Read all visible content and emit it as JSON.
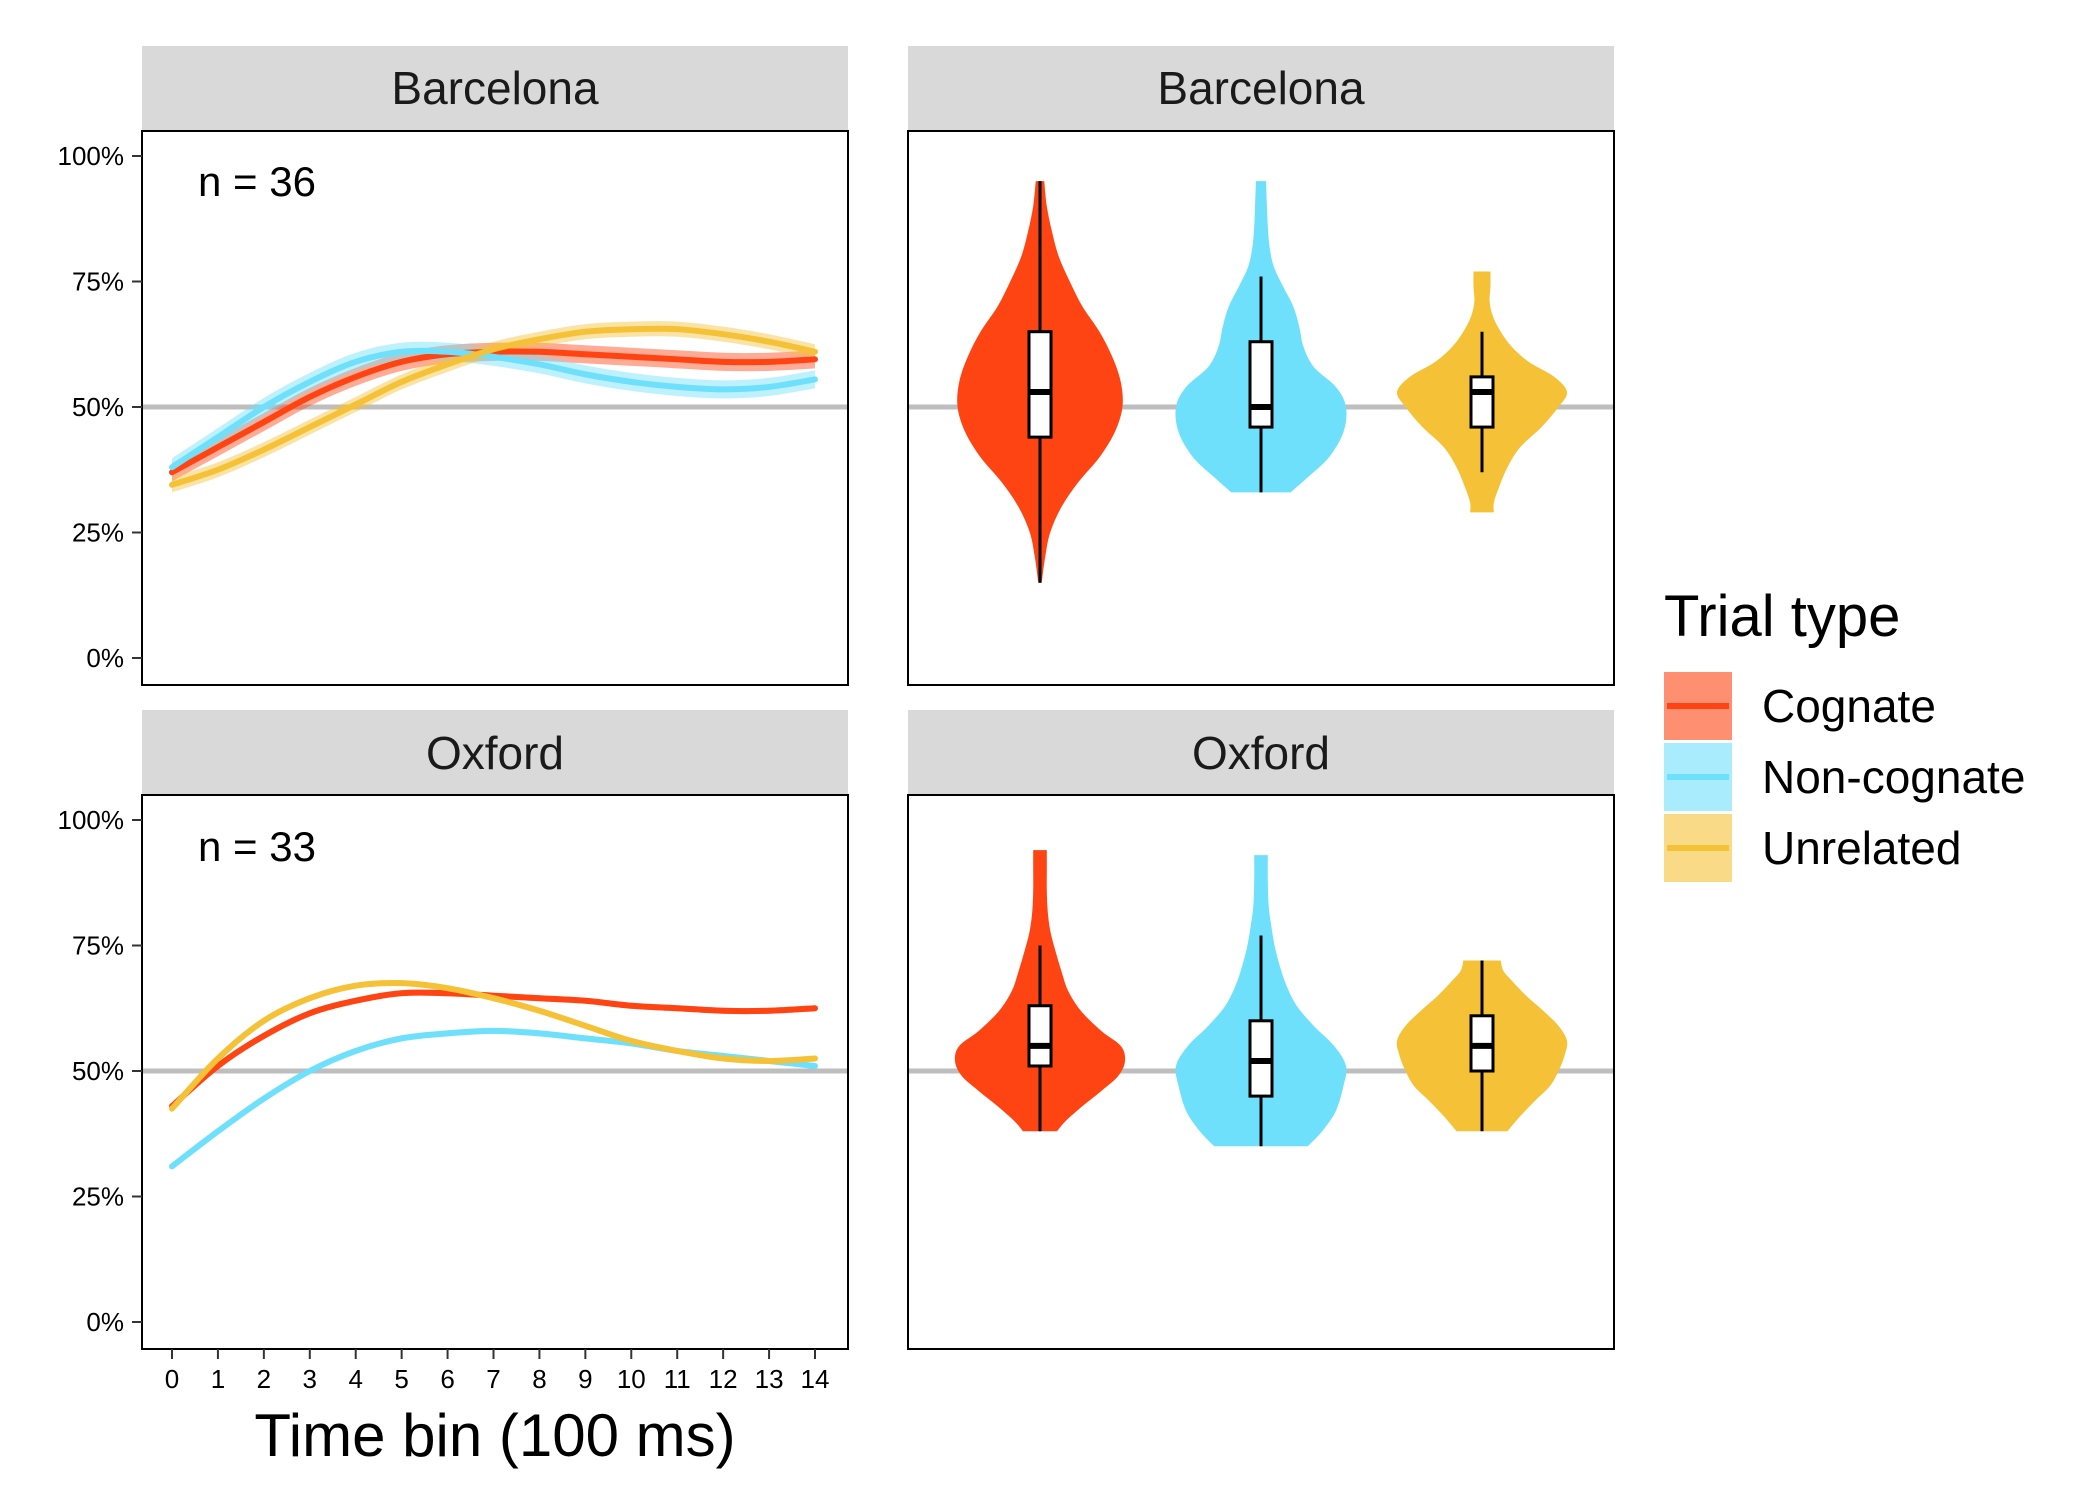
{
  "colors": {
    "Cognate": "#FF4413",
    "Non-cognate": "#6FE0FC",
    "Unrelated": "#F5C237",
    "strip": "#D9D9D9",
    "reference_line": "#BEBEBE"
  },
  "legend": {
    "title": "Trial type",
    "items": [
      "Cognate",
      "Non-cognate",
      "Unrelated"
    ]
  },
  "chart_data": [
    {
      "type": "line",
      "panel": "time-course",
      "strip_label": "Barcelona",
      "annotation": "n = 36",
      "xlabel": "",
      "ylabel": "",
      "xlim": [
        0,
        14
      ],
      "ylim": [
        0,
        100
      ],
      "yticks": [
        "0%",
        "25%",
        "50%",
        "75%",
        "100%"
      ],
      "reference_y": 50,
      "x": [
        0,
        1,
        2,
        3,
        4,
        5,
        6,
        7,
        8,
        9,
        10,
        11,
        12,
        13,
        14
      ],
      "series": [
        {
          "name": "Cognate",
          "values": [
            37,
            42,
            47,
            52,
            56,
            59,
            60.5,
            61,
            61,
            60.5,
            60,
            59.5,
            59,
            59,
            59.5
          ],
          "band": 1.8
        },
        {
          "name": "Non-cognate",
          "values": [
            38,
            44,
            50,
            55,
            59,
            61,
            61,
            60,
            58.5,
            56.5,
            55,
            54,
            53.5,
            54,
            55.5
          ],
          "band": 1.8
        },
        {
          "name": "Unrelated",
          "values": [
            34.5,
            37.5,
            41.5,
            46,
            50.5,
            55,
            58.5,
            61.5,
            63.5,
            65,
            65.5,
            65.5,
            64.5,
            63,
            61
          ],
          "band": 1.5
        }
      ],
      "grid": false,
      "legend_position": "right"
    },
    {
      "type": "violin",
      "panel": "distribution",
      "strip_label": "Barcelona",
      "ylim": [
        0,
        100
      ],
      "reference_y": 50,
      "categories": [
        "Cognate",
        "Non-cognate",
        "Unrelated"
      ],
      "series": [
        {
          "name": "Cognate",
          "min": 15,
          "max": 95,
          "q1": 44,
          "median": 53,
          "q3": 65,
          "whisker_low": 15,
          "whisker_high": 95,
          "profile": [
            [
              15,
              0.02
            ],
            [
              20,
              0.06
            ],
            [
              25,
              0.12
            ],
            [
              30,
              0.25
            ],
            [
              35,
              0.45
            ],
            [
              40,
              0.7
            ],
            [
              45,
              0.88
            ],
            [
              50,
              0.97
            ],
            [
              55,
              0.95
            ],
            [
              60,
              0.85
            ],
            [
              65,
              0.7
            ],
            [
              70,
              0.5
            ],
            [
              75,
              0.35
            ],
            [
              80,
              0.22
            ],
            [
              85,
              0.14
            ],
            [
              90,
              0.08
            ],
            [
              95,
              0.05
            ]
          ]
        },
        {
          "name": "Non-cognate",
          "min": 33,
          "max": 95,
          "q1": 46,
          "median": 50,
          "q3": 63,
          "whisker_low": 33,
          "whisker_high": 76,
          "profile": [
            [
              33,
              0.35
            ],
            [
              36,
              0.55
            ],
            [
              40,
              0.8
            ],
            [
              45,
              0.97
            ],
            [
              50,
              1.0
            ],
            [
              54,
              0.88
            ],
            [
              58,
              0.62
            ],
            [
              62,
              0.5
            ],
            [
              66,
              0.45
            ],
            [
              70,
              0.38
            ],
            [
              74,
              0.26
            ],
            [
              78,
              0.15
            ],
            [
              82,
              0.1
            ],
            [
              86,
              0.08
            ],
            [
              90,
              0.07
            ],
            [
              95,
              0.06
            ]
          ]
        },
        {
          "name": "Unrelated",
          "min": 29,
          "max": 77,
          "q1": 46,
          "median": 53,
          "q3": 56,
          "whisker_low": 37,
          "whisker_high": 65,
          "profile": [
            [
              29,
              0.14
            ],
            [
              31,
              0.14
            ],
            [
              34,
              0.2
            ],
            [
              38,
              0.3
            ],
            [
              42,
              0.45
            ],
            [
              46,
              0.7
            ],
            [
              50,
              0.9
            ],
            [
              53,
              1.0
            ],
            [
              56,
              0.85
            ],
            [
              59,
              0.55
            ],
            [
              62,
              0.35
            ],
            [
              65,
              0.22
            ],
            [
              68,
              0.13
            ],
            [
              71,
              0.09
            ],
            [
              74,
              0.1
            ],
            [
              77,
              0.1
            ]
          ]
        }
      ]
    },
    {
      "type": "line",
      "panel": "time-course",
      "strip_label": "Oxford",
      "annotation": "n = 33",
      "xlabel": "Time bin (100 ms)",
      "ylabel": "",
      "xlim": [
        0,
        14
      ],
      "ylim": [
        0,
        100
      ],
      "yticks": [
        "0%",
        "25%",
        "50%",
        "75%",
        "100%"
      ],
      "xticks": [
        "0",
        "1",
        "2",
        "3",
        "4",
        "5",
        "6",
        "7",
        "8",
        "9",
        "10",
        "11",
        "12",
        "13",
        "14"
      ],
      "reference_y": 50,
      "x": [
        0,
        1,
        2,
        3,
        4,
        5,
        6,
        7,
        8,
        9,
        10,
        11,
        12,
        13,
        14
      ],
      "series": [
        {
          "name": "Cognate",
          "values": [
            43,
            51,
            57,
            61.5,
            64,
            65.5,
            65.5,
            65,
            64.5,
            64,
            63,
            62.5,
            62,
            62,
            62.5
          ],
          "band": 0.6
        },
        {
          "name": "Non-cognate",
          "values": [
            31,
            38,
            44.5,
            50,
            54,
            56.5,
            57.5,
            58,
            57.5,
            56.5,
            55.5,
            54,
            53,
            52,
            51
          ],
          "band": 0.6
        },
        {
          "name": "Unrelated",
          "values": [
            42.5,
            52.5,
            60,
            64.5,
            67,
            67.5,
            66.5,
            64.5,
            62,
            59,
            56,
            54,
            52.5,
            52,
            52.5
          ],
          "band": 0.6
        }
      ],
      "grid": false
    },
    {
      "type": "violin",
      "panel": "distribution",
      "strip_label": "Oxford",
      "ylim": [
        0,
        100
      ],
      "reference_y": 50,
      "categories": [
        "Cognate",
        "Non-cognate",
        "Unrelated"
      ],
      "series": [
        {
          "name": "Cognate",
          "min": 38,
          "max": 94,
          "q1": 51,
          "median": 55,
          "q3": 63,
          "whisker_low": 38,
          "whisker_high": 75,
          "profile": [
            [
              38,
              0.2
            ],
            [
              40,
              0.3
            ],
            [
              43,
              0.5
            ],
            [
              46,
              0.72
            ],
            [
              49,
              0.92
            ],
            [
              52,
              1.0
            ],
            [
              55,
              0.95
            ],
            [
              58,
              0.72
            ],
            [
              62,
              0.48
            ],
            [
              66,
              0.33
            ],
            [
              70,
              0.25
            ],
            [
              74,
              0.18
            ],
            [
              78,
              0.12
            ],
            [
              82,
              0.09
            ],
            [
              86,
              0.08
            ],
            [
              90,
              0.08
            ],
            [
              94,
              0.08
            ]
          ]
        },
        {
          "name": "Non-cognate",
          "min": 35,
          "max": 93,
          "q1": 45,
          "median": 52,
          "q3": 60,
          "whisker_low": 35,
          "whisker_high": 77,
          "profile": [
            [
              35,
              0.55
            ],
            [
              38,
              0.72
            ],
            [
              42,
              0.88
            ],
            [
              47,
              0.97
            ],
            [
              51,
              1.0
            ],
            [
              55,
              0.86
            ],
            [
              59,
              0.62
            ],
            [
              63,
              0.42
            ],
            [
              67,
              0.3
            ],
            [
              71,
              0.22
            ],
            [
              75,
              0.16
            ],
            [
              79,
              0.12
            ],
            [
              83,
              0.09
            ],
            [
              88,
              0.08
            ],
            [
              93,
              0.08
            ]
          ]
        },
        {
          "name": "Unrelated",
          "min": 38,
          "max": 72,
          "q1": 50,
          "median": 55,
          "q3": 61,
          "whisker_low": 38,
          "whisker_high": 72,
          "profile": [
            [
              38,
              0.3
            ],
            [
              41,
              0.45
            ],
            [
              44,
              0.62
            ],
            [
              47,
              0.8
            ],
            [
              50,
              0.9
            ],
            [
              53,
              0.97
            ],
            [
              56,
              1.0
            ],
            [
              59,
              0.9
            ],
            [
              62,
              0.72
            ],
            [
              65,
              0.52
            ],
            [
              68,
              0.35
            ],
            [
              70,
              0.25
            ],
            [
              72,
              0.22
            ]
          ]
        }
      ]
    }
  ]
}
